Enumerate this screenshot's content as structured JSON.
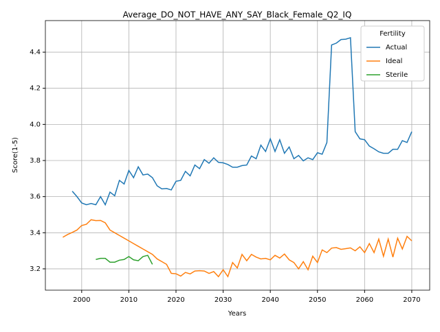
{
  "chart_data": {
    "type": "line",
    "title": "Average_DO_NOT_HAVE_ANY_SAY_Black_Female_Q2_IQ",
    "x_label": "Years",
    "y_label": "Score(1-5)",
    "legend_title": "Fertility",
    "legend_position": "upper right",
    "grid": true,
    "x": [
      1996,
      1997,
      1998,
      1999,
      2000,
      2001,
      2002,
      2003,
      2004,
      2005,
      2006,
      2007,
      2008,
      2009,
      2010,
      2011,
      2012,
      2013,
      2014,
      2015,
      2016,
      2017,
      2018,
      2019,
      2020,
      2021,
      2022,
      2023,
      2024,
      2025,
      2026,
      2027,
      2028,
      2029,
      2030,
      2031,
      2032,
      2033,
      2034,
      2035,
      2036,
      2037,
      2038,
      2039,
      2040,
      2041,
      2042,
      2043,
      2044,
      2045,
      2046,
      2047,
      2048,
      2049,
      2050,
      2051,
      2052,
      2053,
      2054,
      2055,
      2056,
      2057,
      2058,
      2059,
      2060,
      2061,
      2062,
      2063,
      2064,
      2065,
      2066,
      2067,
      2068,
      2069,
      2070
    ],
    "series": [
      {
        "name": "Actual",
        "color": "#1f77b4",
        "values": [
          null,
          null,
          3.63,
          3.6,
          3.565,
          3.555,
          3.562,
          3.555,
          3.6,
          3.555,
          3.625,
          3.605,
          3.69,
          3.67,
          3.745,
          3.705,
          3.765,
          3.72,
          3.725,
          3.705,
          3.66,
          3.643,
          3.645,
          3.637,
          3.685,
          3.69,
          3.74,
          3.715,
          3.775,
          3.755,
          3.805,
          3.785,
          3.815,
          3.79,
          3.787,
          3.778,
          3.763,
          3.763,
          3.772,
          3.775,
          3.825,
          3.81,
          3.885,
          3.85,
          3.92,
          3.85,
          3.915,
          3.84,
          3.875,
          3.81,
          3.828,
          3.798,
          3.815,
          3.805,
          3.843,
          3.835,
          3.9,
          4.44,
          4.45,
          4.47,
          4.472,
          4.48,
          3.96,
          3.92,
          3.915,
          3.88,
          3.865,
          3.848,
          3.84,
          3.84,
          3.862,
          3.862,
          3.91,
          3.9,
          3.96
        ]
      },
      {
        "name": "Ideal",
        "color": "#ff7f0e",
        "values": [
          3.375,
          3.39,
          3.402,
          3.415,
          3.44,
          3.447,
          3.472,
          3.467,
          3.468,
          3.455,
          3.415,
          3.4,
          3.385,
          3.37,
          3.355,
          3.34,
          3.325,
          3.31,
          3.295,
          3.28,
          3.255,
          3.24,
          3.225,
          3.175,
          3.173,
          3.16,
          3.18,
          3.172,
          3.188,
          3.19,
          3.188,
          3.175,
          3.185,
          3.157,
          3.195,
          3.157,
          3.235,
          3.205,
          3.28,
          3.245,
          3.28,
          3.265,
          3.255,
          3.258,
          3.25,
          3.275,
          3.26,
          3.282,
          3.25,
          3.235,
          3.2,
          3.24,
          3.195,
          3.27,
          3.235,
          3.305,
          3.29,
          3.315,
          3.318,
          3.308,
          3.312,
          3.316,
          3.3,
          3.322,
          3.29,
          3.34,
          3.29,
          3.365,
          3.27,
          3.365,
          3.265,
          3.37,
          3.31,
          3.38,
          3.355
        ]
      },
      {
        "name": "Sterile",
        "color": "#2ca02c",
        "values": [
          null,
          null,
          null,
          null,
          null,
          null,
          null,
          3.252,
          3.258,
          3.258,
          3.237,
          3.237,
          3.248,
          3.252,
          3.268,
          3.25,
          3.245,
          3.268,
          3.275,
          3.225,
          null,
          null,
          null,
          null,
          null,
          null,
          null,
          null,
          null,
          null,
          null,
          null,
          null,
          null,
          null,
          null,
          null,
          null,
          null,
          null,
          null,
          null,
          null,
          null,
          null,
          null,
          null,
          null,
          null,
          null,
          null,
          null,
          null,
          null,
          null,
          null,
          null,
          null,
          null,
          null,
          null,
          null,
          null,
          null,
          null,
          null,
          null,
          null,
          null,
          null,
          null,
          null,
          null,
          null,
          null
        ]
      }
    ],
    "xlim": [
      1992.3,
      2073.8
    ],
    "xticks": [
      2000,
      2010,
      2020,
      2030,
      2040,
      2050,
      2060,
      2070
    ],
    "ylim": [
      3.082,
      4.575
    ],
    "yticks": [
      3.2,
      3.4,
      3.6,
      3.8,
      {
        "value": 4,
        "label": "4.0"
      },
      4.2,
      4.4
    ]
  }
}
